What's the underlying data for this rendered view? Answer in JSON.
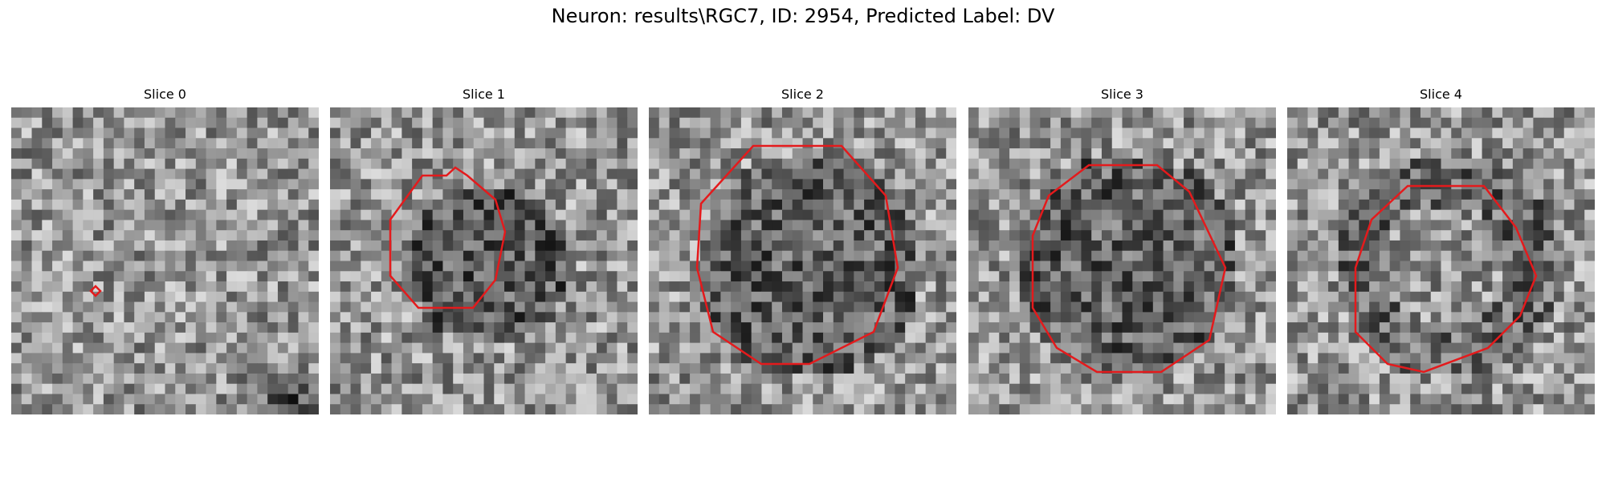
{
  "figure": {
    "title": "Neuron: results\\RGC7, ID: 2954, Predicted Label: DV"
  },
  "contour_color": "#e41a1c",
  "colormap": "gray",
  "slices": [
    {
      "title": "Slice 0",
      "seed": 11,
      "dark_blob": "none"
    },
    {
      "title": "Slice 1",
      "seed": 23,
      "dark_blob": "medium"
    },
    {
      "title": "Slice 2",
      "seed": 37,
      "dark_blob": "large"
    },
    {
      "title": "Slice 3",
      "seed": 51,
      "dark_blob": "large"
    },
    {
      "title": "Slice 4",
      "seed": 67,
      "dark_blob": "ring"
    }
  ]
}
